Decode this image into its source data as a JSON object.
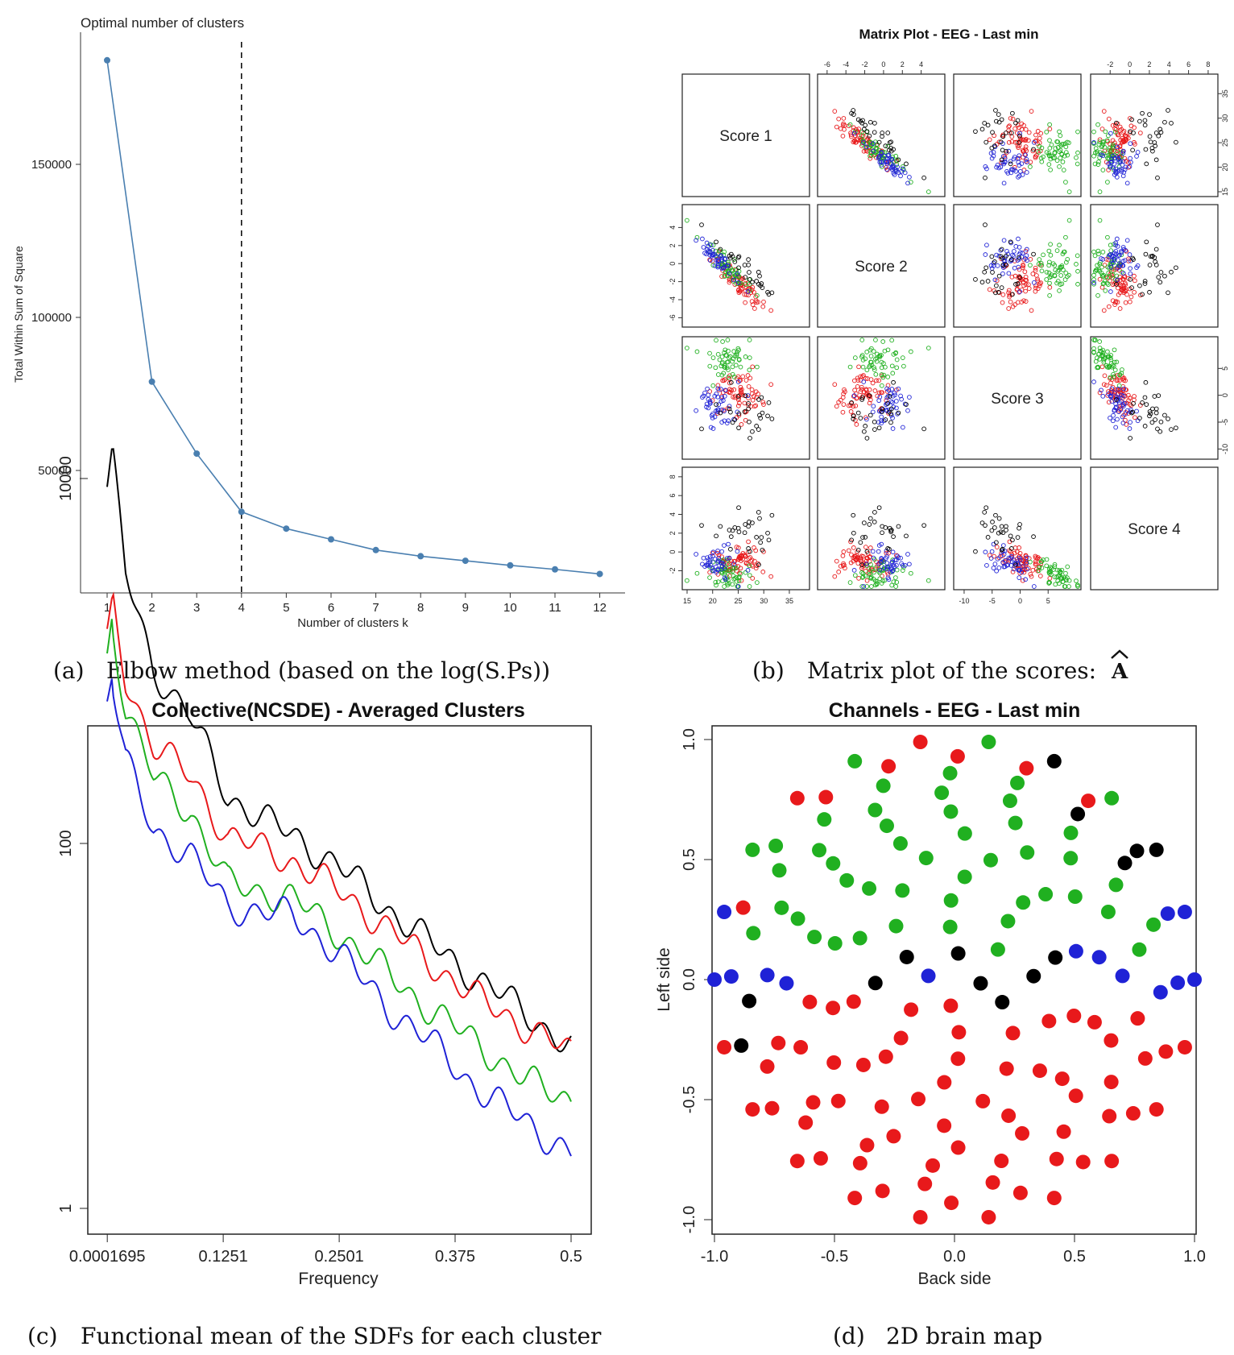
{
  "chart_data": [
    {
      "type": "line",
      "title": "Optimal number of clusters",
      "xlabel": "Number of clusters k",
      "ylabel": "Total Within Sum of Square",
      "x": [
        1,
        2,
        3,
        4,
        5,
        6,
        7,
        8,
        9,
        10,
        11,
        12
      ],
      "values": [
        184000,
        79000,
        55500,
        36500,
        31000,
        27500,
        24000,
        22000,
        20500,
        19000,
        17700,
        16200
      ],
      "xticks": [
        "1",
        "2",
        "3",
        "4",
        "5",
        "6",
        "7",
        "8",
        "9",
        "10",
        "11",
        "12"
      ],
      "yticks": [
        "50000",
        "100000",
        "150000"
      ],
      "ylim": [
        10000,
        190000
      ],
      "vline": 4,
      "color": "#4a7fb0",
      "caption_label": "(a)",
      "caption": "Elbow method (based on the log(S.Ps))"
    },
    {
      "type": "scatter",
      "title": "Matrix Plot - EEG - Last min",
      "variables": [
        "Score 1",
        "Score 2",
        "Score 3",
        "Score 4"
      ],
      "tick_labels": {
        "score1": [
          "15",
          "20",
          "25",
          "30",
          "35"
        ],
        "score2": [
          "-6",
          "-4",
          "-2",
          "0",
          "2",
          "4"
        ],
        "score3": [
          "-10",
          "-5",
          "0",
          "5"
        ],
        "score4": [
          "-2",
          "0",
          "2",
          "4",
          "6",
          "8"
        ]
      },
      "clusters": [
        {
          "name": "red",
          "color": "#e8191b",
          "center": [
            25,
            -2,
            0,
            -1
          ]
        },
        {
          "name": "green",
          "color": "#20b020",
          "center": [
            23,
            -0.5,
            7,
            -2.5
          ]
        },
        {
          "name": "blue",
          "color": "#1f22d6",
          "center": [
            20,
            1,
            -2,
            -1
          ]
        },
        {
          "name": "black",
          "color": "#000000",
          "center": [
            27,
            -1,
            -3,
            2
          ]
        }
      ],
      "caption_label": "(b)",
      "caption": "Matrix plot of the scores:",
      "caption_symbol": "A"
    },
    {
      "type": "line",
      "title": "Collective(NCSDE) - Averaged Clusters",
      "xlabel": "Frequency",
      "ylabel": "",
      "y_scale": "log",
      "xticks": [
        "0.0001695",
        "0.1251",
        "0.2501",
        "0.375",
        "0.5"
      ],
      "xtick_values": [
        0.0001695,
        0.1251,
        0.2501,
        0.375,
        0.5
      ],
      "yticks": [
        "1",
        "100",
        "10000"
      ],
      "ytick_values": [
        1,
        100,
        10000
      ],
      "xlim": [
        0,
        0.5
      ],
      "series": [
        {
          "name": "black",
          "color": "#000000",
          "x": [
            0.0001,
            0.005,
            0.02,
            0.05,
            0.09,
            0.13,
            0.2,
            0.25,
            0.3,
            0.35,
            0.4,
            0.45,
            0.5
          ],
          "values": [
            9000,
            14500,
            3000,
            900,
            500,
            180,
            110,
            75,
            45,
            28,
            18,
            12,
            7.5
          ]
        },
        {
          "name": "red",
          "color": "#e8191b",
          "x": [
            0.0001,
            0.005,
            0.02,
            0.05,
            0.09,
            0.13,
            0.2,
            0.25,
            0.3,
            0.35,
            0.4,
            0.45,
            0.5
          ],
          "values": [
            1500,
            2200,
            800,
            350,
            230,
            110,
            80,
            55,
            35,
            22,
            14,
            10,
            7
          ]
        },
        {
          "name": "green",
          "color": "#20b020",
          "x": [
            0.0001,
            0.005,
            0.02,
            0.05,
            0.09,
            0.13,
            0.2,
            0.25,
            0.3,
            0.35,
            0.4,
            0.45,
            0.5
          ],
          "values": [
            1100,
            1700,
            550,
            230,
            150,
            60,
            50,
            32,
            20,
            12,
            8,
            5,
            4
          ]
        },
        {
          "name": "blue",
          "color": "#1f22d6",
          "x": [
            0.0001,
            0.005,
            0.02,
            0.05,
            0.09,
            0.13,
            0.2,
            0.25,
            0.3,
            0.35,
            0.4,
            0.45,
            0.5
          ],
          "values": [
            600,
            800,
            280,
            120,
            85,
            45,
            40,
            25,
            13,
            8,
            4.5,
            3,
            2
          ]
        }
      ],
      "caption_label": "(c)",
      "caption": "Functional mean of the SDFs for each cluster"
    },
    {
      "type": "scatter",
      "title": "Channels - EEG - Last min",
      "xlabel": "Back side",
      "ylabel": "Left side",
      "xticks": [
        "-1.0",
        "-0.5",
        "0.0",
        "0.5",
        "1.0"
      ],
      "xtick_values": [
        -1,
        -0.5,
        0,
        0.5,
        1
      ],
      "yticks": [
        "-1.0",
        "-0.5",
        "0.0",
        "0.5",
        "1.0"
      ],
      "ytick_values": [
        -1,
        -0.5,
        0,
        0.5,
        1
      ],
      "xlim": [
        -1.05,
        1.05
      ],
      "ylim": [
        -1.05,
        1.05
      ],
      "colors": {
        "red": "#e8191b",
        "green": "#20b020",
        "blue": "#1f22d6",
        "black": "#000000"
      },
      "caption_label": "(d)",
      "caption": "2D brain map"
    }
  ]
}
